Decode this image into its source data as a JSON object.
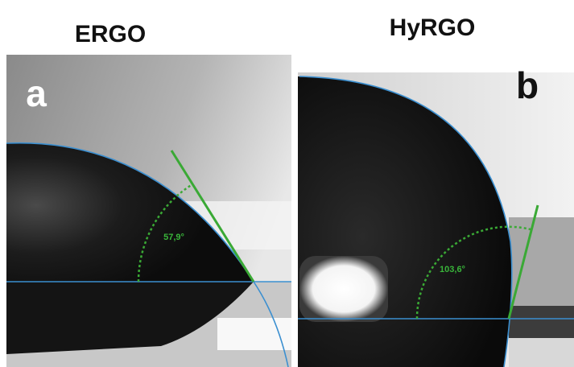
{
  "panels": [
    {
      "title": "ERGO",
      "label": "a",
      "angle": "57,9°"
    },
    {
      "title": "HyRGO",
      "label": "b",
      "angle": "103,6°"
    }
  ]
}
